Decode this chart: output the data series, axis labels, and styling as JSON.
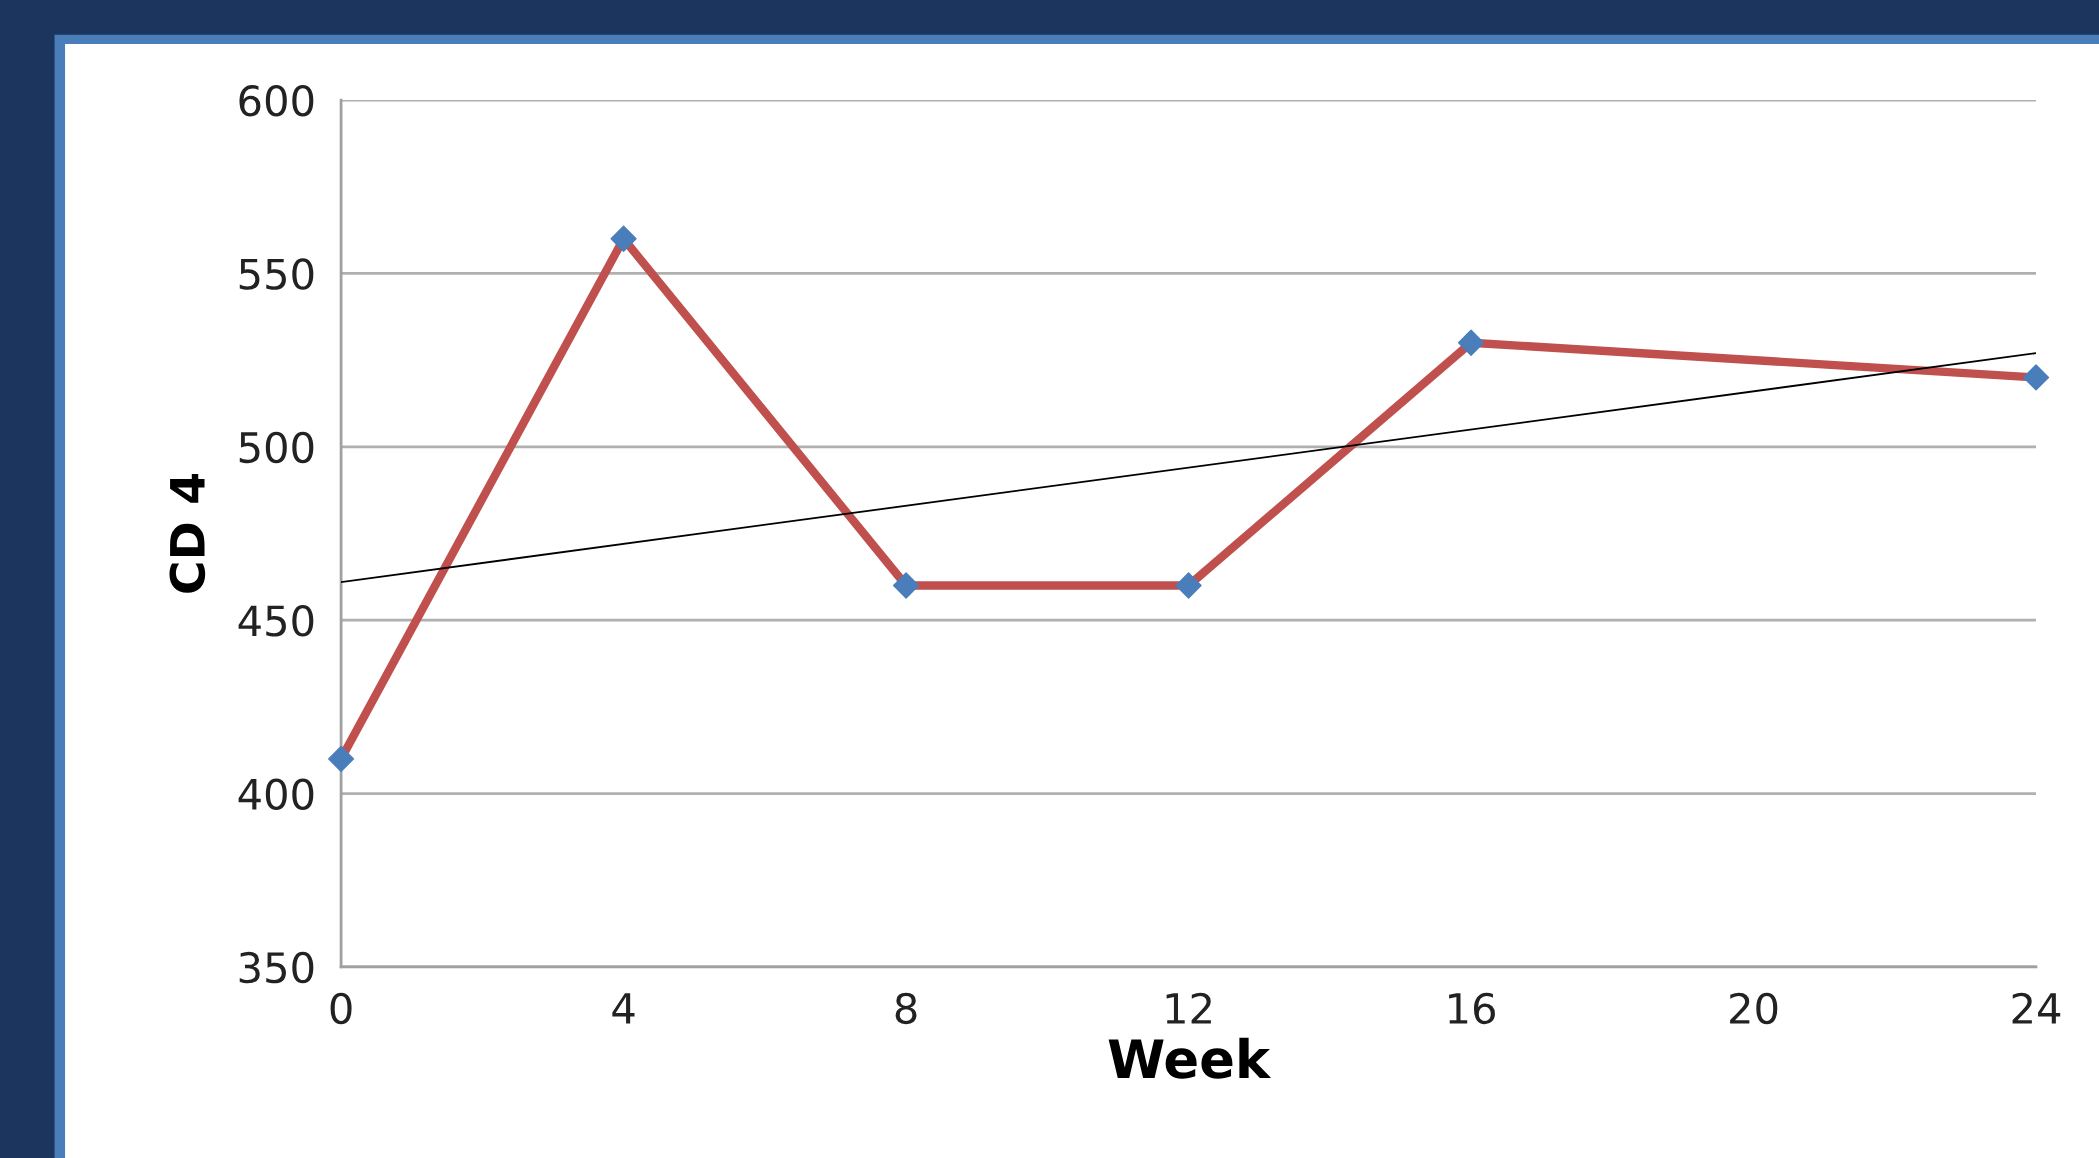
{
  "chart_data": {
    "type": "line",
    "xlabel": "Week",
    "ylabel": "CD 4",
    "x": [
      0,
      4,
      8,
      12,
      16,
      24
    ],
    "series": [
      {
        "values": [
          410,
          560,
          460,
          460,
          530,
          520
        ],
        "color": "#c0504d",
        "marker": "diamond",
        "colors": [
          "#4a7ebb",
          "#4a7ebb",
          "#4a7ebb",
          "#4a7ebb",
          "#4a7ebb",
          "#4a7ebb"
        ]
      },
      {
        "type": "line",
        "x": [
          0,
          24
        ],
        "values": [
          461,
          527
        ],
        "color": "#000000",
        "marker": "none"
      }
    ],
    "xlim": [
      0,
      24
    ],
    "xticks": [
      0,
      4,
      8,
      12,
      16,
      20,
      24
    ],
    "ylim": [
      350,
      600
    ],
    "yticks": [
      350,
      400,
      450,
      500,
      550,
      600
    ],
    "grid": "y",
    "legend": false
  }
}
